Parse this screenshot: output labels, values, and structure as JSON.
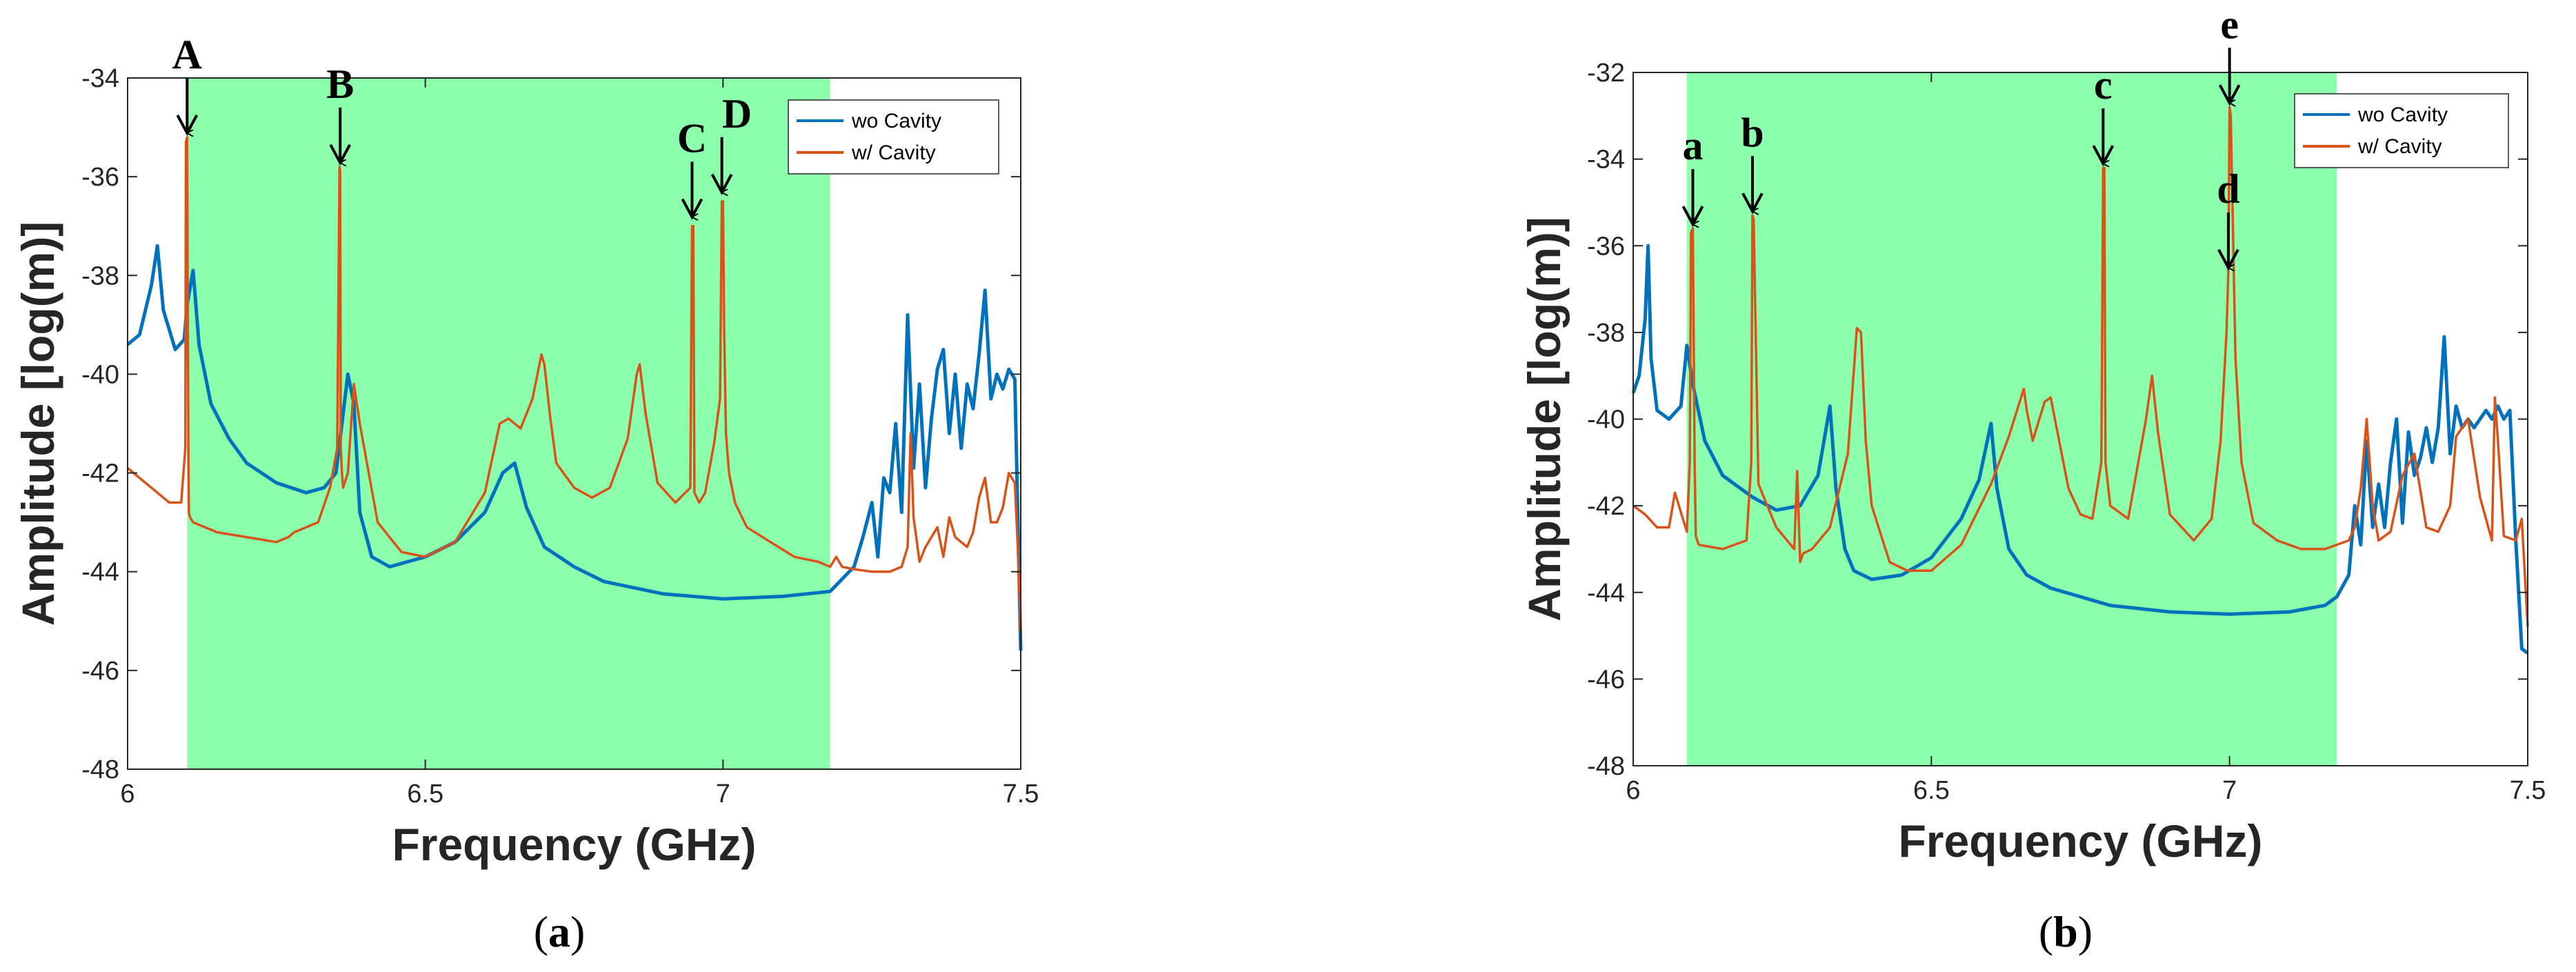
{
  "chart_data": [
    {
      "type": "line",
      "panel_label": "a",
      "xlabel": "Frequency (GHz)",
      "ylabel": "Amplitude [log(m)]",
      "xlim": [
        6,
        7.5
      ],
      "ylim": [
        -48,
        -34
      ],
      "xticks": [
        "6",
        "6.5",
        "7",
        "7.5"
      ],
      "yticks": [
        "-48",
        "-46",
        "-44",
        "-42",
        "-40",
        "-38",
        "-36",
        "-34"
      ],
      "bandgap": [
        6.1,
        7.18
      ],
      "legend": {
        "position": "top-right",
        "entries": [
          "wo Cavity",
          "w/ Cavity"
        ]
      },
      "series": [
        {
          "name": "wo Cavity",
          "color": "#0072BD",
          "x": [
            6.0,
            6.02,
            6.04,
            6.05,
            6.06,
            6.08,
            6.095,
            6.1,
            6.11,
            6.12,
            6.14,
            6.17,
            6.2,
            6.25,
            6.3,
            6.33,
            6.35,
            6.37,
            6.38,
            6.39,
            6.41,
            6.44,
            6.47,
            6.5,
            6.55,
            6.6,
            6.63,
            6.65,
            6.67,
            6.7,
            6.75,
            6.8,
            6.9,
            7.0,
            7.1,
            7.18,
            7.22,
            7.235,
            7.25,
            7.26,
            7.27,
            7.28,
            7.29,
            7.3,
            7.31,
            7.32,
            7.33,
            7.34,
            7.35,
            7.36,
            7.37,
            7.38,
            7.39,
            7.4,
            7.41,
            7.42,
            7.43,
            7.44,
            7.45,
            7.46,
            7.47,
            7.48,
            7.49,
            7.5
          ],
          "y": [
            -39.4,
            -39.2,
            -38.2,
            -37.4,
            -38.7,
            -39.5,
            -39.3,
            -38.6,
            -37.9,
            -39.4,
            -40.6,
            -41.3,
            -41.8,
            -42.2,
            -42.4,
            -42.3,
            -42.0,
            -40.0,
            -40.6,
            -42.8,
            -43.7,
            -43.9,
            -43.8,
            -43.7,
            -43.4,
            -42.8,
            -42.0,
            -41.8,
            -42.7,
            -43.5,
            -43.9,
            -44.2,
            -44.45,
            -44.55,
            -44.5,
            -44.4,
            -43.9,
            -43.3,
            -42.6,
            -43.7,
            -42.1,
            -42.4,
            -41.0,
            -42.8,
            -38.8,
            -41.9,
            -40.2,
            -42.3,
            -40.9,
            -39.9,
            -39.5,
            -41.2,
            -40.0,
            -41.5,
            -40.2,
            -40.7,
            -39.6,
            -38.3,
            -40.5,
            -40.0,
            -40.3,
            -39.9,
            -40.1,
            -45.6
          ]
        },
        {
          "name": "w/ Cavity",
          "color": "#D95319",
          "x": [
            6.0,
            6.01,
            6.03,
            6.05,
            6.07,
            6.09,
            6.097,
            6.098,
            6.1,
            6.102,
            6.103,
            6.105,
            6.11,
            6.15,
            6.2,
            6.25,
            6.27,
            6.28,
            6.3,
            6.32,
            6.34,
            6.352,
            6.356,
            6.357,
            6.358,
            6.36,
            6.362,
            6.37,
            6.38,
            6.39,
            6.42,
            6.46,
            6.5,
            6.55,
            6.6,
            6.625,
            6.64,
            6.66,
            6.68,
            6.695,
            6.7,
            6.71,
            6.72,
            6.75,
            6.78,
            6.81,
            6.84,
            6.855,
            6.86,
            6.87,
            6.89,
            6.92,
            6.945,
            6.948,
            6.95,
            6.952,
            6.96,
            6.97,
            6.985,
            6.995,
            6.998,
            7.0,
            7.002,
            7.005,
            7.01,
            7.02,
            7.04,
            7.08,
            7.12,
            7.16,
            7.18,
            7.19,
            7.2,
            7.22,
            7.25,
            7.28,
            7.3,
            7.31,
            7.315,
            7.32,
            7.33,
            7.34,
            7.36,
            7.37,
            7.38,
            7.39,
            7.4,
            7.41,
            7.42,
            7.43,
            7.44,
            7.45,
            7.46,
            7.47,
            7.48,
            7.49,
            7.495,
            7.5
          ],
          "y": [
            -41.9,
            -42.0,
            -42.2,
            -42.4,
            -42.6,
            -42.6,
            -41.5,
            -35.3,
            -35.2,
            -41.5,
            -42.8,
            -42.9,
            -43.0,
            -43.2,
            -43.3,
            -43.4,
            -43.3,
            -43.2,
            -43.1,
            -43.0,
            -42.3,
            -41.5,
            -35.8,
            -35.9,
            -41.5,
            -42.0,
            -42.3,
            -42.0,
            -40.2,
            -41.0,
            -43.0,
            -43.6,
            -43.7,
            -43.4,
            -42.4,
            -41.0,
            -40.9,
            -41.1,
            -40.5,
            -39.6,
            -39.8,
            -40.9,
            -41.8,
            -42.3,
            -42.5,
            -42.3,
            -41.3,
            -40.0,
            -39.8,
            -40.8,
            -42.2,
            -42.6,
            -42.3,
            -37.0,
            -37.0,
            -42.4,
            -42.6,
            -42.4,
            -41.4,
            -40.5,
            -36.5,
            -36.5,
            -39.2,
            -41.2,
            -42.0,
            -42.6,
            -43.1,
            -43.4,
            -43.7,
            -43.8,
            -43.9,
            -43.7,
            -43.9,
            -43.95,
            -44.0,
            -44.0,
            -43.9,
            -43.5,
            -41.2,
            -42.9,
            -43.8,
            -43.5,
            -43.1,
            -43.7,
            -42.9,
            -43.3,
            -43.4,
            -43.5,
            -43.2,
            -42.5,
            -42.1,
            -43.0,
            -43.0,
            -42.7,
            -42.0,
            -42.2,
            -43.5,
            -45.2
          ]
        }
      ],
      "annotations": [
        {
          "label": "A",
          "x": 6.1,
          "y": -35.2
        },
        {
          "label": "B",
          "x": 6.357,
          "y": -35.8
        },
        {
          "label": "C",
          "x": 6.948,
          "y": -36.9
        },
        {
          "label": "D",
          "x": 6.998,
          "y": -36.4
        }
      ]
    },
    {
      "type": "line",
      "panel_label": "b",
      "xlabel": "Frequency (GHz)",
      "ylabel": "Amplitude [log(m)]",
      "xlim": [
        6,
        7.5
      ],
      "ylim": [
        -48,
        -32
      ],
      "xticks": [
        "6",
        "6.5",
        "7",
        "7.5"
      ],
      "yticks": [
        "-48",
        "-46",
        "-44",
        "-42",
        "-40",
        "-38",
        "-36",
        "-34",
        "-32"
      ],
      "bandgap": [
        6.09,
        7.18
      ],
      "legend": {
        "position": "top-right",
        "entries": [
          "wo Cavity",
          "w/ Cavity"
        ]
      },
      "series": [
        {
          "name": "wo Cavity",
          "color": "#0072BD",
          "x": [
            6.0,
            6.01,
            6.02,
            6.025,
            6.03,
            6.04,
            6.06,
            6.08,
            6.09,
            6.1,
            6.12,
            6.15,
            6.2,
            6.24,
            6.28,
            6.31,
            6.33,
            6.34,
            6.355,
            6.37,
            6.4,
            6.45,
            6.5,
            6.55,
            6.58,
            6.6,
            6.61,
            6.63,
            6.66,
            6.7,
            6.8,
            6.9,
            7.0,
            7.1,
            7.16,
            7.18,
            7.2,
            7.21,
            7.22,
            7.23,
            7.24,
            7.25,
            7.26,
            7.27,
            7.28,
            7.29,
            7.3,
            7.31,
            7.32,
            7.33,
            7.34,
            7.35,
            7.36,
            7.37,
            7.38,
            7.39,
            7.4,
            7.41,
            7.42,
            7.43,
            7.44,
            7.45,
            7.46,
            7.47,
            7.48,
            7.49,
            7.5
          ],
          "y": [
            -39.4,
            -39.0,
            -37.7,
            -36.0,
            -38.6,
            -39.8,
            -40.0,
            -39.7,
            -38.3,
            -39.2,
            -40.5,
            -41.3,
            -41.8,
            -42.1,
            -42.0,
            -41.3,
            -39.7,
            -41.6,
            -43.0,
            -43.5,
            -43.7,
            -43.6,
            -43.2,
            -42.3,
            -41.4,
            -40.1,
            -41.6,
            -43.0,
            -43.6,
            -43.9,
            -44.3,
            -44.45,
            -44.5,
            -44.45,
            -44.3,
            -44.1,
            -43.6,
            -42.0,
            -42.9,
            -40.5,
            -42.5,
            -41.5,
            -42.5,
            -41.0,
            -40.0,
            -42.4,
            -40.3,
            -41.3,
            -40.9,
            -40.2,
            -41.0,
            -40.2,
            -38.1,
            -40.8,
            -39.7,
            -40.2,
            -40.0,
            -40.2,
            -40.0,
            -39.8,
            -40.0,
            -39.7,
            -40.0,
            -39.8,
            -42.8,
            -45.3,
            -45.4
          ]
        },
        {
          "name": "w/ Cavity",
          "color": "#D95319",
          "x": [
            6.0,
            6.02,
            6.04,
            6.06,
            6.07,
            6.09,
            6.095,
            6.097,
            6.1,
            6.103,
            6.105,
            6.11,
            6.15,
            6.19,
            6.198,
            6.2,
            6.202,
            6.21,
            6.24,
            6.27,
            6.275,
            6.28,
            6.285,
            6.3,
            6.33,
            6.36,
            6.375,
            6.382,
            6.39,
            6.4,
            6.43,
            6.46,
            6.5,
            6.55,
            6.6,
            6.63,
            6.655,
            6.66,
            6.67,
            6.69,
            6.7,
            6.71,
            6.73,
            6.75,
            6.77,
            6.785,
            6.788,
            6.79,
            6.792,
            6.8,
            6.83,
            6.86,
            6.87,
            6.88,
            6.9,
            6.94,
            6.97,
            6.985,
            6.995,
            6.998,
            7.0,
            7.002,
            7.01,
            7.02,
            7.04,
            7.08,
            7.12,
            7.16,
            7.2,
            7.21,
            7.22,
            7.23,
            7.24,
            7.25,
            7.27,
            7.29,
            7.31,
            7.33,
            7.35,
            7.37,
            7.38,
            7.4,
            7.42,
            7.44,
            7.445,
            7.45,
            7.46,
            7.48,
            7.49,
            7.5
          ],
          "y": [
            -42.0,
            -42.2,
            -42.5,
            -42.5,
            -41.7,
            -42.6,
            -41.0,
            -35.7,
            -35.6,
            -41.0,
            -42.7,
            -42.9,
            -43.0,
            -42.8,
            -41.0,
            -35.3,
            -35.4,
            -41.5,
            -42.5,
            -43.0,
            -41.2,
            -43.3,
            -43.1,
            -43.0,
            -42.5,
            -40.8,
            -37.9,
            -38.0,
            -40.5,
            -42.0,
            -43.3,
            -43.5,
            -43.5,
            -42.9,
            -41.5,
            -40.4,
            -39.3,
            -39.8,
            -40.5,
            -39.6,
            -39.5,
            -40.2,
            -41.6,
            -42.2,
            -42.3,
            -41.0,
            -34.2,
            -34.2,
            -41.0,
            -42.0,
            -42.3,
            -40.0,
            -39.0,
            -40.3,
            -42.2,
            -42.8,
            -42.3,
            -40.5,
            -38.0,
            -36.6,
            -32.8,
            -33.0,
            -38.6,
            -41.0,
            -42.4,
            -42.8,
            -43.0,
            -43.0,
            -42.8,
            -42.5,
            -41.6,
            -40.0,
            -42.0,
            -42.8,
            -42.6,
            -41.3,
            -40.8,
            -42.5,
            -42.6,
            -42.0,
            -40.4,
            -40.0,
            -41.8,
            -42.8,
            -39.5,
            -40.5,
            -42.7,
            -42.8,
            -42.3,
            -44.8
          ]
        }
      ],
      "annotations": [
        {
          "label": "a",
          "x": 6.1,
          "y": -35.6
        },
        {
          "label": "b",
          "x": 6.2,
          "y": -35.3
        },
        {
          "label": "c",
          "x": 6.788,
          "y": -34.2
        },
        {
          "label": "d",
          "x": 6.998,
          "y": -36.6
        },
        {
          "label": "e",
          "x": 7.0,
          "y": -32.8
        }
      ]
    }
  ],
  "captions": [
    {
      "open": "(",
      "letter": "a",
      "close": ")"
    },
    {
      "open": "(",
      "letter": "b",
      "close": ")"
    }
  ],
  "colors": {
    "bandgap_fill": "#8CFFAD",
    "wo_cavity": "#0072BD",
    "w_cavity": "#D95319",
    "axis": "#262626"
  }
}
